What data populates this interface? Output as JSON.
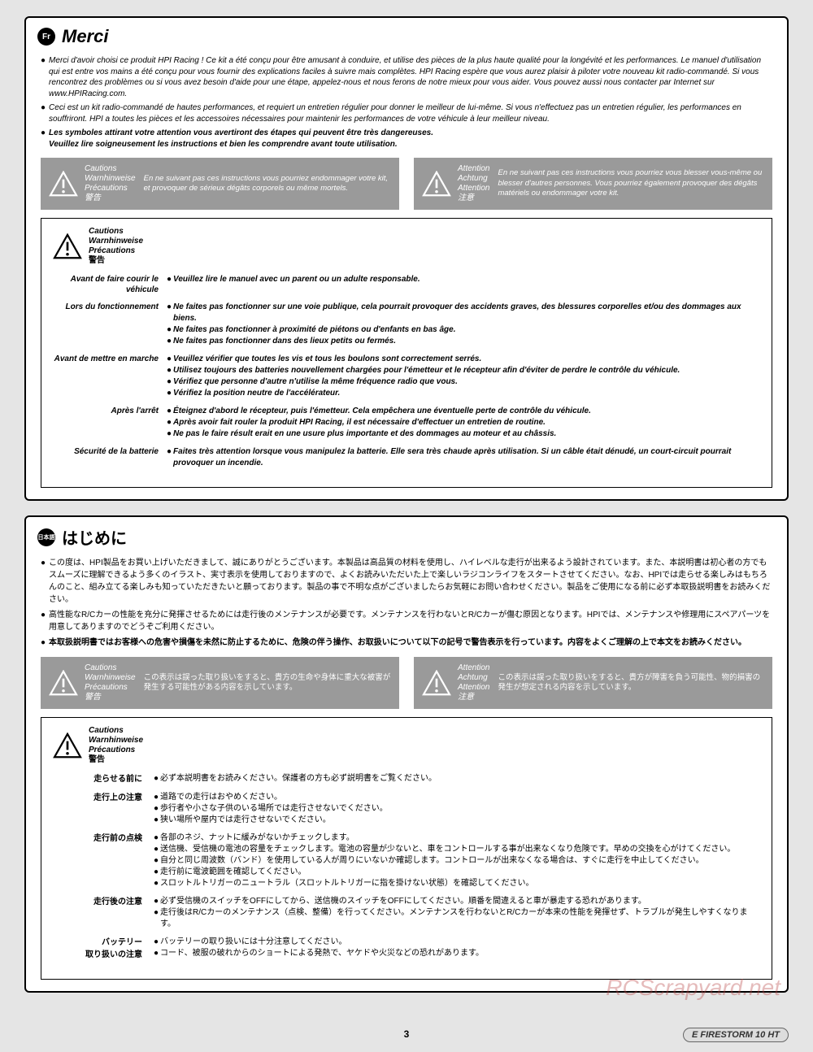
{
  "fr": {
    "badge": "Fr",
    "title": "Merci",
    "intro1": "Merci d'avoir choisi ce produit HPI Racing ! Ce kit a été conçu pour être amusant à conduire, et utilise des pièces de la plus haute qualité pour la longévité et les performances. Le manuel d'utilisation qui est entre vos mains a été conçu pour vous fournir des explications faciles à suivre mais complètes. HPI Racing espère que vous aurez plaisir à piloter votre nouveau kit radio-commandé. Si vous rencontrez des problèmes ou si vous avez besoin d'aide pour une étape, appelez-nous et nous ferons de notre mieux pour vous aider. Vous pouvez aussi nous contacter par Internet sur www.HPIRacing.com.",
    "intro2": "Ceci est un kit radio-commandé de hautes performances, et requiert un entretien régulier pour donner le meilleur de lui-même. Si vous n'effectuez pas un entretien régulier, les performances en souffriront. HPI a toutes les pièces et les accessoires nécessaires pour maintenir les performances de votre véhicule à leur meilleur niveau.",
    "intro3a": "Les symboles attirant votre attention vous avertiront des étapes qui peuvent être très dangereuses.",
    "intro3b": "Veuillez lire soigneusement les instructions et bien les comprendre avant toute utilisation.",
    "caution_labels": [
      "Cautions",
      "Warnhinweise",
      "Précautions",
      "警告"
    ],
    "attention_labels": [
      "Attention",
      "Achtung",
      "Attention",
      "注意"
    ],
    "caution_text": "En ne suivant pas ces instructions vous pourriez endommager votre kit, et provoquer de sérieux dégâts corporels ou même mortels.",
    "attention_text": "En ne suivant pas ces instructions vous pourriez vous blesser vous-même ou blesser d'autres personnes. Vous pourriez également provoquer des dégâts matériels ou endommager votre kit.",
    "prec_header": [
      "Cautions",
      "Warnhinweise",
      "Précautions",
      "警告"
    ],
    "rows": [
      {
        "label": "Avant de faire courir le véhicule",
        "lines": [
          "Veuillez lire le manuel avec un parent ou un adulte responsable."
        ]
      },
      {
        "label": "Lors du fonctionnement",
        "lines": [
          "Ne faites pas fonctionner sur une voie publique, cela pourrait provoquer des accidents graves, des blessures corporelles et/ou des dommages aux biens.",
          "Ne faites pas fonctionner à proximité de piétons ou d'enfants en bas âge.",
          "Ne faites pas fonctionner dans des lieux petits ou fermés."
        ]
      },
      {
        "label": "Avant de mettre en marche",
        "lines": [
          "Veuillez vérifier que toutes les vis et tous les boulons sont correctement serrés.",
          "Utilisez toujours des batteries nouvellement chargées pour l'émetteur et le récepteur afin d'éviter de perdre le contrôle du véhicule.",
          "Vérifiez que personne d'autre n'utilise la même fréquence radio que vous.",
          "Vérifiez la position neutre de l'accélérateur."
        ]
      },
      {
        "label": "Après l'arrêt",
        "lines": [
          "Éteignez d'abord le récepteur, puis l'émetteur. Cela empêchera une éventuelle perte de contrôle du véhicule.",
          "Après avoir fait rouler la produit HPI Racing, il est nécessaire d'effectuer un entretien de routine.",
          "Ne pas le faire résult erait en une usure plus importante et des dommages au moteur et au châssis."
        ]
      },
      {
        "label": "Sécurité de la batterie",
        "lines": [
          "Faites très attention lorsque vous manipulez la batterie. Elle sera très chaude après utilisation. Si un câble était dénudé, un court-circuit pourrait provoquer un incendie."
        ]
      }
    ]
  },
  "jp": {
    "badge": "日本語",
    "title": "はじめに",
    "intro1": "この度は、HPI製品をお買い上げいただきまして、誠にありがとうございます。本製品は高品質の材料を使用し、ハイレベルな走行が出来るよう設計されています。また、本説明書は初心者の方でもスムーズに理解できるよう多くのイラスト、実寸表示を使用しておりますので、よくお読みいただいた上で楽しいラジコンライフをスタートさせてください。なお、HPIでは走らせる楽しみはもちろんのこと、組み立てる楽しみも知っていただきたいと願っております。製品の事で不明な点がございましたらお気軽にお問い合わせください。製品をご使用になる前に必ず本取扱説明書をお読みください。",
    "intro2": "高性能なR/Cカーの性能を充分に発揮させるためには走行後のメンテナンスが必要です。メンテナンスを行わないとR/Cカーが傷む原因となります。HPIでは、メンテナンスや修理用にスペアパーツを用意してありますのでどうぞご利用ください。",
    "intro3": "本取扱説明書ではお客様への危害や損傷を未然に防止するために、危険の伴う操作、お取扱いについて以下の記号で警告表示を行っています。内容をよくご理解の上で本文をお読みください。",
    "caution_text": "この表示は誤った取り扱いをすると、貴方の生命や身体に重大な被害が発生する可能性がある内容を示しています。",
    "attention_text": "この表示は誤った取り扱いをすると、貴方が障害を負う可能性、物的損害の発生が想定される内容を示しています。",
    "rows": [
      {
        "label": "走らせる前に",
        "lines": [
          "必ず本説明書をお読みください。保護者の方も必ず説明書をご覧ください。"
        ]
      },
      {
        "label": "走行上の注意",
        "lines": [
          "道路での走行はおやめください。",
          "歩行者や小さな子供のいる場所では走行させないでください。",
          "狭い場所や屋内では走行させないでください。"
        ]
      },
      {
        "label": "走行前の点検",
        "lines": [
          "各部のネジ、ナットに緩みがないかチェックします。",
          "送信機、受信機の電池の容量をチェックします。電池の容量が少ないと、車をコントロールする事が出来なくなり危険です。早めの交換を心がけてください。",
          "自分と同じ周波数（バンド）を使用している人が周りにいないか確認します。コントロールが出来なくなる場合は、すぐに走行を中止してください。",
          "走行前に電波範囲を確認してください。",
          "スロットルトリガーのニュートラル（スロットルトリガーに指を掛けない状態）を確認してください。"
        ]
      },
      {
        "label": "走行後の注意",
        "lines": [
          "必ず受信機のスイッチをOFFにしてから、送信機のスイッチをOFFにしてください。順番を間違えると車が暴走する恐れがあります。",
          "走行後はR/Cカーのメンテナンス（点検、整備）を行ってください。メンテナンスを行わないとR/Cカーが本来の性能を発揮せず、トラブルが発生しやすくなります。"
        ]
      },
      {
        "label": "バッテリー\n取り扱いの注意",
        "lines": [
          "バッテリーの取り扱いには十分注意してください。",
          "コード、被服の破れからのショートによる発熱で、ヤケドや火災などの恐れがあります。"
        ]
      }
    ]
  },
  "footer": {
    "page": "3",
    "logo": "E FIRESTORM 10 HT",
    "watermark": "RCScrapyard.net"
  }
}
